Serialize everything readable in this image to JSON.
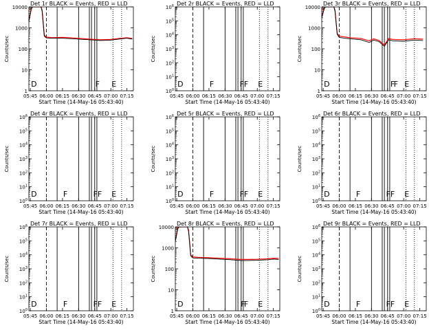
{
  "figure": {
    "xlabel": "Start Time (14-May-16 05:43:40)",
    "ylabel": "Counts/sec"
  },
  "chart_data": [
    {
      "type": "line",
      "title": "Det 1r BLACK = Events, RED = LLD",
      "yscale": "log",
      "ylim": [
        1,
        10000
      ],
      "ytick_labels": [
        "1",
        "10",
        "100",
        "1000",
        "10000"
      ],
      "xlim": [
        "05:43:40",
        "07:21"
      ],
      "xtick_labels": [
        "05:45",
        "06:00",
        "06:15",
        "06:30",
        "06:45",
        "07:00",
        "07:15"
      ],
      "has_data": true,
      "series": [
        {
          "color": "#000000",
          "x": [
            "05:43:40",
            "05:46",
            "05:47",
            "05:48",
            "05:50",
            "05:53",
            "05:55",
            "05:56",
            "05:58",
            "06:00",
            "06:05",
            "06:15",
            "06:25",
            "06:35",
            "06:45",
            "06:50",
            "07:00",
            "07:10",
            "07:15",
            "07:20"
          ],
          "y": [
            2000,
            8000,
            10000,
            10000,
            10000,
            10000,
            10000,
            6000,
            400,
            330,
            320,
            320,
            300,
            280,
            260,
            250,
            260,
            300,
            320,
            290
          ]
        },
        {
          "color": "#ff0000",
          "x": [
            "05:43:40",
            "05:46",
            "05:47",
            "05:48",
            "05:50",
            "05:53",
            "05:55",
            "05:56",
            "05:58",
            "06:00",
            "06:05",
            "06:15",
            "06:25",
            "06:35",
            "06:45",
            "06:50",
            "07:00",
            "07:10",
            "07:15",
            "07:20"
          ],
          "y": [
            2200,
            9000,
            10000,
            10000,
            10000,
            10000,
            10000,
            7000,
            450,
            360,
            340,
            350,
            330,
            300,
            280,
            270,
            280,
            320,
            340,
            310
          ]
        }
      ],
      "markers": [
        {
          "label": "D",
          "x": "05:45"
        },
        {
          "label": "F",
          "x": "06:45"
        },
        {
          "label": "E",
          "x": "07:00"
        }
      ]
    },
    {
      "type": "line",
      "title": "Det 2r BLACK = Events, RED = LLD",
      "yscale": "log",
      "ylim": [
        1,
        1000000
      ],
      "ytick_labels": [
        "10^0",
        "10^1",
        "10^2",
        "10^3",
        "10^4",
        "10^5",
        "10^6"
      ],
      "xlim": [
        "05:43:40",
        "07:21"
      ],
      "xtick_labels": [
        "05:45",
        "06:00",
        "06:15",
        "06:30",
        "06:45",
        "07:00",
        "07:15"
      ],
      "has_data": false,
      "markers": [
        {
          "label": "D",
          "x": "05:45"
        },
        {
          "label": "F",
          "x": "06:15"
        },
        {
          "label": "F",
          "x": "06:43"
        },
        {
          "label": "F",
          "x": "06:47"
        },
        {
          "label": "E",
          "x": "07:00"
        }
      ]
    },
    {
      "type": "line",
      "title": "Det 3r BLACK = Events, RED = LLD",
      "yscale": "log",
      "ylim": [
        1,
        10000
      ],
      "ytick_labels": [
        "1",
        "10",
        "100",
        "1000",
        "10000"
      ],
      "xlim": [
        "05:43:40",
        "07:21"
      ],
      "xtick_labels": [
        "05:45",
        "06:00",
        "06:15",
        "06:30",
        "06:45",
        "07:00",
        "07:15"
      ],
      "has_data": true,
      "series": [
        {
          "color": "#000000",
          "x": [
            "05:43:40",
            "05:46",
            "05:47",
            "05:48",
            "05:50",
            "05:53",
            "05:55",
            "05:56",
            "05:58",
            "06:00",
            "06:05",
            "06:10",
            "06:20",
            "06:28",
            "06:32",
            "06:37",
            "06:42",
            "06:46",
            "06:50",
            "07:00",
            "07:10",
            "07:18"
          ],
          "y": [
            3000,
            8000,
            10000,
            10000,
            10000,
            10000,
            10000,
            6000,
            500,
            350,
            320,
            300,
            270,
            200,
            260,
            220,
            130,
            270,
            240,
            230,
            260,
            250
          ]
        },
        {
          "color": "#ff0000",
          "x": [
            "05:43:40",
            "05:46",
            "05:47",
            "05:48",
            "05:50",
            "05:53",
            "05:55",
            "05:56",
            "05:58",
            "06:00",
            "06:05",
            "06:10",
            "06:20",
            "06:28",
            "06:32",
            "06:37",
            "06:42",
            "06:46",
            "06:50",
            "07:00",
            "07:10",
            "07:18"
          ],
          "y": [
            3300,
            9000,
            10000,
            10000,
            10000,
            10000,
            10000,
            7000,
            560,
            400,
            370,
            340,
            310,
            240,
            300,
            250,
            150,
            310,
            280,
            270,
            300,
            290
          ]
        }
      ],
      "markers": [
        {
          "label": "D",
          "x": "05:45"
        },
        {
          "label": "F",
          "x": "06:47"
        },
        {
          "label": "F",
          "x": "06:50"
        },
        {
          "label": "E",
          "x": "07:00"
        }
      ]
    },
    {
      "type": "line",
      "title": "Det 4r BLACK = Events, RED = LLD",
      "yscale": "log",
      "ylim": [
        1,
        1000000
      ],
      "ytick_labels": [
        "10^0",
        "10^1",
        "10^2",
        "10^3",
        "10^4",
        "10^5",
        "10^6"
      ],
      "xlim": [
        "05:43:40",
        "07:21"
      ],
      "xtick_labels": [
        "05:45",
        "06:00",
        "06:15",
        "06:30",
        "06:45",
        "07:00",
        "07:15"
      ],
      "has_data": false,
      "markers": [
        {
          "label": "D",
          "x": "05:45"
        },
        {
          "label": "F",
          "x": "06:15"
        },
        {
          "label": "F",
          "x": "06:43"
        },
        {
          "label": "F",
          "x": "06:47"
        },
        {
          "label": "E",
          "x": "07:00"
        }
      ]
    },
    {
      "type": "line",
      "title": "Det 5r BLACK = Events, RED = LLD",
      "yscale": "log",
      "ylim": [
        1,
        1000000
      ],
      "ytick_labels": [
        "10^0",
        "10^1",
        "10^2",
        "10^3",
        "10^4",
        "10^5",
        "10^6"
      ],
      "xlim": [
        "05:43:40",
        "07:21"
      ],
      "xtick_labels": [
        "05:45",
        "06:00",
        "06:15",
        "06:30",
        "06:45",
        "07:00",
        "07:15"
      ],
      "has_data": false,
      "markers": [
        {
          "label": "D",
          "x": "05:45"
        },
        {
          "label": "F",
          "x": "06:15"
        },
        {
          "label": "F",
          "x": "06:43"
        },
        {
          "label": "F",
          "x": "06:47"
        },
        {
          "label": "E",
          "x": "07:00"
        }
      ]
    },
    {
      "type": "line",
      "title": "Det 6r BLACK = Events, RED = LLD",
      "yscale": "log",
      "ylim": [
        1,
        1000000
      ],
      "ytick_labels": [
        "10^0",
        "10^1",
        "10^2",
        "10^3",
        "10^4",
        "10^5",
        "10^6"
      ],
      "xlim": [
        "05:43:40",
        "07:21"
      ],
      "xtick_labels": [
        "05:45",
        "06:00",
        "06:15",
        "06:30",
        "06:45",
        "07:00",
        "07:15"
      ],
      "has_data": false,
      "markers": [
        {
          "label": "D",
          "x": "05:45"
        },
        {
          "label": "F",
          "x": "06:15"
        },
        {
          "label": "F",
          "x": "06:43"
        },
        {
          "label": "F",
          "x": "06:47"
        },
        {
          "label": "E",
          "x": "07:00"
        }
      ]
    },
    {
      "type": "line",
      "title": "Det 7r BLACK = Events, RED = LLD",
      "yscale": "log",
      "ylim": [
        1,
        1000000
      ],
      "ytick_labels": [
        "10^0",
        "10^1",
        "10^2",
        "10^3",
        "10^4",
        "10^5",
        "10^6"
      ],
      "xlim": [
        "05:43:40",
        "07:21"
      ],
      "xtick_labels": [
        "05:45",
        "06:00",
        "06:15",
        "06:30",
        "06:45",
        "07:00",
        "07:15"
      ],
      "has_data": false,
      "markers": [
        {
          "label": "D",
          "x": "05:45"
        },
        {
          "label": "F",
          "x": "06:15"
        },
        {
          "label": "F",
          "x": "06:43"
        },
        {
          "label": "F",
          "x": "06:47"
        },
        {
          "label": "E",
          "x": "07:00"
        }
      ]
    },
    {
      "type": "line",
      "title": "Det 8r BLACK = Events, RED = LLD",
      "yscale": "log",
      "ylim": [
        1,
        10000
      ],
      "ytick_labels": [
        "1",
        "10",
        "100",
        "1000",
        "10000"
      ],
      "xlim": [
        "05:43:40",
        "07:21"
      ],
      "xtick_labels": [
        "05:45",
        "06:00",
        "06:15",
        "06:30",
        "06:45",
        "07:00",
        "07:15"
      ],
      "has_data": true,
      "series": [
        {
          "color": "#000000",
          "x": [
            "05:43:40",
            "05:46",
            "05:47",
            "05:48",
            "05:50",
            "05:53",
            "05:55",
            "05:56",
            "05:58",
            "06:00",
            "06:05",
            "06:15",
            "06:25",
            "06:35",
            "06:45",
            "06:50",
            "07:00",
            "07:10",
            "07:15",
            "07:20"
          ],
          "y": [
            2000,
            8000,
            10000,
            10000,
            10000,
            10000,
            10000,
            6000,
            420,
            330,
            320,
            310,
            290,
            270,
            250,
            250,
            255,
            270,
            290,
            280
          ]
        },
        {
          "color": "#ff0000",
          "x": [
            "05:43:40",
            "05:46",
            "05:47",
            "05:48",
            "05:50",
            "05:53",
            "05:55",
            "05:56",
            "05:58",
            "06:00",
            "06:05",
            "06:15",
            "06:25",
            "06:35",
            "06:45",
            "06:50",
            "07:00",
            "07:10",
            "07:15",
            "07:20"
          ],
          "y": [
            2200,
            9000,
            10000,
            10000,
            10000,
            10000,
            10000,
            7000,
            470,
            370,
            350,
            340,
            320,
            300,
            280,
            280,
            285,
            300,
            320,
            310
          ]
        }
      ],
      "markers": [
        {
          "label": "D",
          "x": "05:45"
        },
        {
          "label": "F",
          "x": "06:44"
        },
        {
          "label": "F",
          "x": "06:47"
        },
        {
          "label": "E",
          "x": "07:00"
        }
      ]
    },
    {
      "type": "line",
      "title": "Det 9r BLACK = Events, RED = LLD",
      "yscale": "log",
      "ylim": [
        1,
        1000000
      ],
      "ytick_labels": [
        "10^0",
        "10^1",
        "10^2",
        "10^3",
        "10^4",
        "10^5",
        "10^6"
      ],
      "xlim": [
        "05:43:40",
        "07:21"
      ],
      "xtick_labels": [
        "05:45",
        "06:00",
        "06:15",
        "06:30",
        "06:45",
        "07:00",
        "07:15"
      ],
      "has_data": false,
      "markers": [
        {
          "label": "D",
          "x": "05:45"
        },
        {
          "label": "F",
          "x": "06:15"
        },
        {
          "label": "F",
          "x": "06:43"
        },
        {
          "label": "F",
          "x": "06:47"
        },
        {
          "label": "E",
          "x": "07:00"
        }
      ]
    }
  ],
  "vlines": {
    "dashed": [
      "06:00"
    ],
    "solid": [
      "06:10",
      "06:30",
      "06:40",
      "06:42",
      "06:45",
      "06:47"
    ],
    "dotted": [
      "07:02",
      "07:10"
    ]
  }
}
